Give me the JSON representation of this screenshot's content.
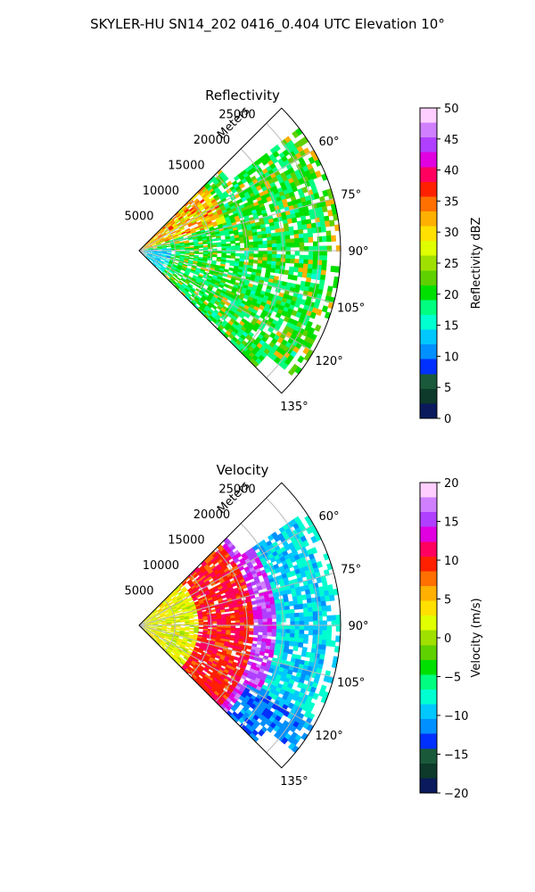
{
  "figure": {
    "title": "SKYLER-HU  SN14_202  0416_0.404 UTC Elevation 10°"
  },
  "chart_data": [
    {
      "type": "heatmap",
      "projection": "polar-sector",
      "title": "Reflectivity",
      "range_label": "Meters",
      "range_ticks": [
        5000,
        10000,
        15000,
        20000,
        25000
      ],
      "range_tick_labels": [
        "5000",
        "10000",
        "15000",
        "20000",
        "25000"
      ],
      "range_max": 28000,
      "azimuth_ticks": [
        60,
        75,
        90,
        105,
        120,
        135
      ],
      "azimuth_tick_labels": [
        "60°",
        "75°",
        "90°",
        "105°",
        "120°",
        "135°"
      ],
      "azimuth_range": [
        45,
        135
      ],
      "grid": true,
      "colorbar": {
        "label": "Reflectivity dBZ",
        "min": 0,
        "max": 50,
        "ticks": [
          0,
          5,
          10,
          15,
          20,
          25,
          30,
          35,
          40,
          45,
          50
        ],
        "tick_labels": [
          "0",
          "5",
          "10",
          "15",
          "20",
          "25",
          "30",
          "35",
          "40",
          "45",
          "50"
        ],
        "colors": [
          "#0a1a5c",
          "#0d3a2a",
          "#1a5a3a",
          "#0030ff",
          "#0090ff",
          "#00c8ff",
          "#00ffd0",
          "#00ff80",
          "#00e000",
          "#5fd000",
          "#a0e000",
          "#e0ff00",
          "#ffe000",
          "#ffb000",
          "#ff7000",
          "#ff2000",
          "#ff0060",
          "#e000e0",
          "#b040ff",
          "#d080ff",
          "#ffd0ff"
        ]
      },
      "dominant_values": {
        "near_range_west": 35,
        "bulk": 18,
        "scattered_cells": 27
      }
    },
    {
      "type": "heatmap",
      "projection": "polar-sector",
      "title": "Velocity",
      "range_label": "Meters",
      "range_ticks": [
        5000,
        10000,
        15000,
        20000,
        25000
      ],
      "range_tick_labels": [
        "5000",
        "10000",
        "15000",
        "20000",
        "25000"
      ],
      "range_max": 28000,
      "azimuth_ticks": [
        60,
        75,
        90,
        105,
        120,
        135
      ],
      "azimuth_tick_labels": [
        "60°",
        "75°",
        "90°",
        "105°",
        "120°",
        "135°"
      ],
      "azimuth_range": [
        45,
        135
      ],
      "grid": true,
      "colorbar": {
        "label": "Velocity (m/s)",
        "min": -20,
        "max": 20,
        "ticks": [
          -20,
          -15,
          -10,
          -5,
          0,
          5,
          10,
          15,
          20
        ],
        "tick_labels": [
          "−20",
          "−15",
          "−10",
          "−5",
          "0",
          "5",
          "10",
          "15",
          "20"
        ],
        "colors": [
          "#0a1a5c",
          "#0d3a2a",
          "#1a5a3a",
          "#0030ff",
          "#0090ff",
          "#00c8ff",
          "#00ffd0",
          "#00ff80",
          "#00e000",
          "#5fd000",
          "#a0e000",
          "#e0ff00",
          "#ffe000",
          "#ffb000",
          "#ff7000",
          "#ff2000",
          "#ff0060",
          "#e000e0",
          "#b040ff",
          "#d080ff",
          "#ffd0ff"
        ]
      },
      "dominant_values": {
        "near_range": 2,
        "mid_range": 9,
        "far_range": -10
      }
    }
  ]
}
